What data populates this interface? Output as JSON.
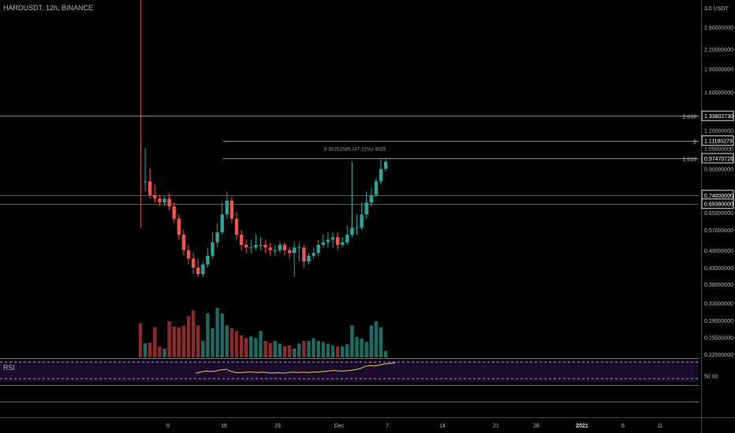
{
  "header": {
    "title": "HARDUSDT, 12h, BINANCE"
  },
  "price_axis": {
    "top_label": "3.0 USDT",
    "ticks": [
      {
        "v": 2.6,
        "l": "2.60000000"
      },
      {
        "v": 2.2,
        "l": "2.20000000"
      },
      {
        "v": 1.9,
        "l": "1.90000000"
      },
      {
        "v": 1.6,
        "l": "1.60000000"
      },
      {
        "v": 1.2,
        "l": "1.20000000"
      },
      {
        "v": 1.05,
        "l": "1.05000000"
      },
      {
        "v": 0.9,
        "l": "0.90000000"
      },
      {
        "v": 0.65,
        "l": "0.65000000"
      },
      {
        "v": 0.57,
        "l": "0.57000000"
      },
      {
        "v": 0.49,
        "l": "0.49000000"
      },
      {
        "v": 0.43,
        "l": "0.43000000"
      },
      {
        "v": 0.38,
        "l": "0.38000000"
      },
      {
        "v": 0.33,
        "l": "0.33000000"
      },
      {
        "v": 0.29,
        "l": "0.29000000"
      },
      {
        "v": 0.255,
        "l": "0.25500000"
      },
      {
        "v": 0.225,
        "l": "0.22500000"
      }
    ],
    "boxed": [
      {
        "v": 1.3380273,
        "l": "1.33802730"
      },
      {
        "v": 1.11180279,
        "l": "1.11180279"
      },
      {
        "v": 0.97470726,
        "l": "0.97470726"
      },
      {
        "v": 0.74,
        "l": "0.74000000"
      },
      {
        "v": 0.6938,
        "l": "0.69380000"
      }
    ]
  },
  "fib_levels": [
    {
      "ratio": "2.618",
      "v": 1.3380273
    },
    {
      "ratio": "2",
      "v": 1.11180279
    },
    {
      "ratio": "1.618",
      "v": 0.97470726
    }
  ],
  "measure_label": "0.30251585 (47.12%) 3025",
  "time_axis": [
    "9",
    "16",
    "23",
    "Dec",
    "7",
    "14",
    "21",
    "28",
    "2021",
    "6",
    "11"
  ],
  "rsi": {
    "label": "RSI",
    "level_label": "50.00"
  },
  "chart_data": {
    "type": "candlestick",
    "title": "HARDUSDT, 12h, BINANCE",
    "x": [
      1,
      2,
      3,
      4,
      5,
      6,
      7,
      8,
      9,
      10,
      11,
      12,
      13,
      14,
      15,
      16,
      17,
      18,
      19,
      20,
      21,
      22,
      23,
      24,
      25,
      26,
      27,
      28,
      29,
      30,
      31,
      32,
      33,
      34,
      35,
      36,
      37,
      38,
      39,
      40,
      41,
      42,
      43,
      44,
      45,
      46,
      47,
      48,
      49,
      50,
      51,
      52
    ],
    "open": [
      2.95,
      0.82,
      0.82,
      0.74,
      0.72,
      0.7,
      0.72,
      0.68,
      0.62,
      0.55,
      0.49,
      0.46,
      0.43,
      0.41,
      0.44,
      0.47,
      0.52,
      0.56,
      0.64,
      0.71,
      0.62,
      0.55,
      0.51,
      0.5,
      0.5,
      0.51,
      0.51,
      0.5,
      0.49,
      0.49,
      0.51,
      0.49,
      0.48,
      0.5,
      0.5,
      0.45,
      0.47,
      0.48,
      0.51,
      0.52,
      0.53,
      0.54,
      0.51,
      0.52,
      0.55,
      0.58,
      0.58,
      0.64,
      0.7,
      0.74,
      0.82,
      0.9
    ],
    "close": [
      0.82,
      0.82,
      0.74,
      0.72,
      0.7,
      0.72,
      0.68,
      0.62,
      0.55,
      0.49,
      0.46,
      0.43,
      0.41,
      0.44,
      0.47,
      0.52,
      0.56,
      0.64,
      0.71,
      0.62,
      0.55,
      0.51,
      0.5,
      0.5,
      0.51,
      0.51,
      0.5,
      0.49,
      0.49,
      0.51,
      0.49,
      0.48,
      0.5,
      0.5,
      0.45,
      0.47,
      0.48,
      0.51,
      0.52,
      0.53,
      0.54,
      0.51,
      0.52,
      0.55,
      0.58,
      0.58,
      0.64,
      0.7,
      0.74,
      0.82,
      0.9,
      0.95
    ],
    "high": [
      2.95,
      1.05,
      0.9,
      0.8,
      0.74,
      0.73,
      0.75,
      0.7,
      0.64,
      0.57,
      0.51,
      0.48,
      0.46,
      0.45,
      0.5,
      0.56,
      0.6,
      0.7,
      0.76,
      0.73,
      0.65,
      0.57,
      0.53,
      0.53,
      0.55,
      0.54,
      0.53,
      0.52,
      0.51,
      0.52,
      0.52,
      0.5,
      0.52,
      0.52,
      0.51,
      0.48,
      0.5,
      0.53,
      0.55,
      0.56,
      0.56,
      0.56,
      0.54,
      0.59,
      0.94,
      0.64,
      0.7,
      0.76,
      0.78,
      0.84,
      0.97,
      0.98
    ],
    "low": [
      0.58,
      0.76,
      0.72,
      0.7,
      0.68,
      0.68,
      0.66,
      0.6,
      0.53,
      0.47,
      0.44,
      0.41,
      0.4,
      0.4,
      0.43,
      0.46,
      0.5,
      0.55,
      0.62,
      0.6,
      0.53,
      0.49,
      0.48,
      0.48,
      0.49,
      0.49,
      0.48,
      0.47,
      0.47,
      0.48,
      0.47,
      0.46,
      0.4,
      0.45,
      0.43,
      0.44,
      0.46,
      0.47,
      0.5,
      0.5,
      0.5,
      0.49,
      0.5,
      0.51,
      0.54,
      0.55,
      0.57,
      0.62,
      0.68,
      0.73,
      0.8,
      0.88
    ],
    "volume_rel": [
      0.62,
      0.26,
      0.27,
      0.55,
      0.2,
      0.16,
      0.66,
      0.56,
      0.55,
      0.58,
      0.75,
      0.85,
      0.58,
      0.3,
      0.8,
      0.53,
      0.9,
      0.8,
      0.58,
      0.53,
      0.48,
      0.4,
      0.35,
      0.38,
      0.35,
      0.48,
      0.3,
      0.26,
      0.3,
      0.25,
      0.2,
      0.22,
      0.16,
      0.25,
      0.3,
      0.3,
      0.35,
      0.3,
      0.28,
      0.25,
      0.22,
      0.2,
      0.2,
      0.24,
      0.58,
      0.37,
      0.34,
      0.28,
      0.58,
      0.66,
      0.55,
      0.12
    ],
    "rsi": [
      50,
      50,
      51,
      53,
      55,
      55,
      57,
      58,
      58,
      58,
      59,
      59,
      60,
      62,
      64,
      63,
      64,
      66,
      67,
      63,
      61,
      61,
      62,
      62,
      61,
      62,
      61,
      60,
      61,
      60,
      61,
      62,
      61,
      62,
      61,
      62,
      62,
      63,
      64,
      65,
      64,
      64,
      65,
      66,
      68,
      72,
      74,
      73,
      75,
      77,
      78,
      79
    ],
    "rsi_start_index": 18,
    "ylim": [
      0.225,
      3.0
    ],
    "y_scale": "log"
  },
  "colors": {
    "up": "#26a69a",
    "down": "#ef5350",
    "up_vol": "#1e6a62",
    "down_vol": "#8b2a2b",
    "rsi_line": "#e0c65a",
    "rsi_band": "#1b0b2b",
    "rsi_dash": "#d7c2e8"
  }
}
